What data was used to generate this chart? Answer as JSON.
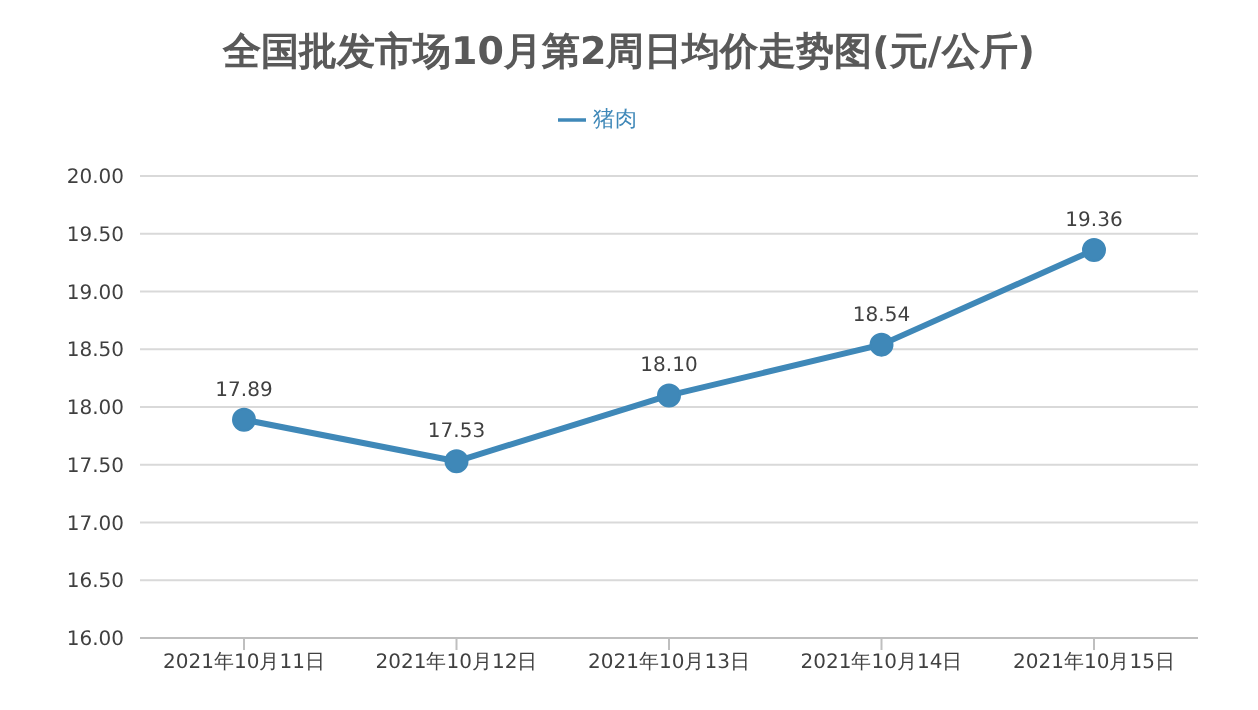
{
  "chart_data": {
    "type": "line",
    "title": "全国批发市场10月第2周日均价走势图(元/公斤)",
    "categories": [
      "2021年10月11日",
      "2021年10月12日",
      "2021年10月13日",
      "2021年10月14日",
      "2021年10月15日"
    ],
    "series": [
      {
        "name": "猪肉",
        "color": "#3f88b8",
        "values": [
          17.89,
          17.53,
          18.1,
          18.54,
          19.36
        ]
      }
    ],
    "ylim": [
      16,
      20
    ],
    "yticks": [
      {
        "value": 16,
        "label": "16.00"
      },
      {
        "value": 16.5,
        "label": "16.50"
      },
      {
        "value": 17,
        "label": "17.00"
      },
      {
        "value": 17.5,
        "label": "17.50"
      },
      {
        "value": 18,
        "label": "18.00"
      },
      {
        "value": 18.5,
        "label": "18.50"
      },
      {
        "value": 19,
        "label": "19.00"
      },
      {
        "value": 19.5,
        "label": "19.50"
      },
      {
        "value": 20,
        "label": "20.00"
      }
    ],
    "value_labels": [
      "17.89",
      "17.53",
      "18.10",
      "18.54",
      "19.36"
    ],
    "grid": "y",
    "legend": "top",
    "marker": "circle",
    "line_style": "solid"
  }
}
